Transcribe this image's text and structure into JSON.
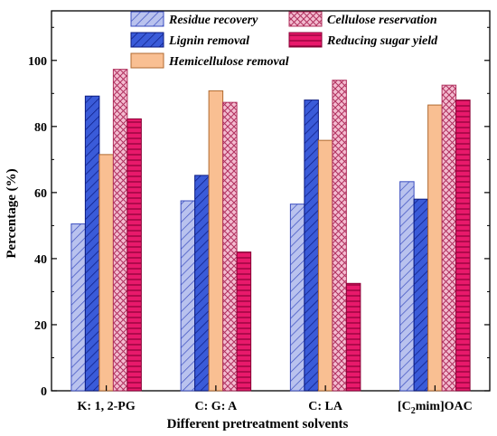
{
  "chart_data": {
    "type": "bar",
    "xlabel": "Different pretreatment solvents",
    "ylabel": "Percentage (%)",
    "ylim": [
      0,
      115
    ],
    "yticks": [
      0,
      20,
      40,
      60,
      80,
      100
    ],
    "categories": [
      {
        "label": "K: 1, 2-PG"
      },
      {
        "label": "C: G: A"
      },
      {
        "label": "C: LA"
      },
      {
        "label_parts": [
          "[C",
          "2",
          "mim]OAC"
        ]
      }
    ],
    "series": [
      {
        "name": "Residue recovery",
        "color": "#b9c2ee",
        "stroke": "#3b4ec0",
        "pattern": "diagonal-hatch",
        "values": [
          50.5,
          57.5,
          56.5,
          63.3
        ]
      },
      {
        "name": "Lignin removal",
        "color": "#3a5bd9",
        "stroke": "#0a1a80",
        "pattern": "diagonal-hatch",
        "values": [
          89.2,
          65.2,
          88,
          58
        ]
      },
      {
        "name": "Hemicellulose removal",
        "color": "#f9bf92",
        "stroke": "#b06a30",
        "pattern": "solid",
        "values": [
          71.5,
          90.8,
          75.8,
          86.5
        ]
      },
      {
        "name": "Cellulose reservation",
        "color": "#f3bcd0",
        "stroke": "#b0305e",
        "pattern": "crosshatch",
        "values": [
          97.3,
          87.3,
          94,
          92.5
        ]
      },
      {
        "name": "Reducing sugar yield",
        "color": "#e8196b",
        "stroke": "#8a0036",
        "pattern": "horizontal-lines",
        "values": [
          82.3,
          42,
          32.5,
          88
        ]
      }
    ],
    "legend": "top-center",
    "grid": false
  }
}
